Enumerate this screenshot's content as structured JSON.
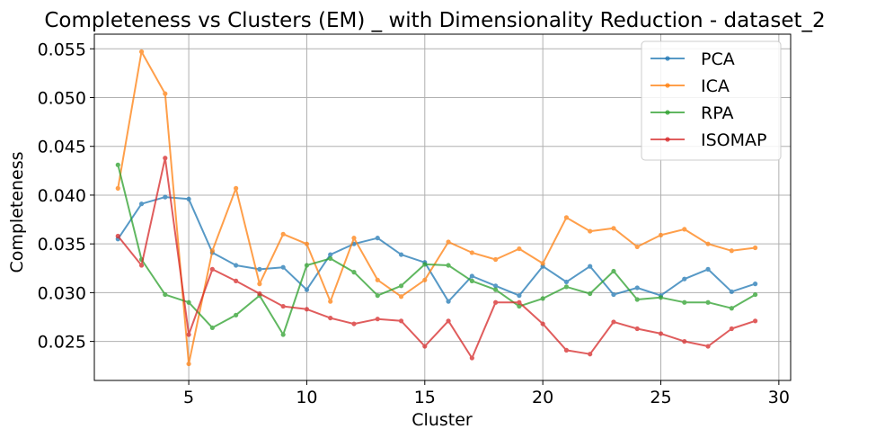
{
  "chart_data": {
    "type": "line",
    "title": "Completeness vs Clusters (EM) _ with Dimensionality Reduction - dataset_2",
    "xlabel": "Cluster",
    "ylabel": "Completeness",
    "xlim": [
      1,
      30.5
    ],
    "ylim": [
      0.021,
      0.0565
    ],
    "xticks": [
      5,
      10,
      15,
      20,
      25,
      30
    ],
    "yticks": [
      0.025,
      0.03,
      0.035,
      0.04,
      0.045,
      0.05,
      0.055
    ],
    "xtick_labels": [
      "5",
      "10",
      "15",
      "20",
      "25",
      "30"
    ],
    "ytick_labels": [
      "0.025",
      "0.030",
      "0.035",
      "0.040",
      "0.045",
      "0.050",
      "0.055"
    ],
    "grid": true,
    "legend_position": "top-right",
    "x": [
      2,
      3,
      4,
      5,
      6,
      7,
      8,
      9,
      10,
      11,
      12,
      13,
      14,
      15,
      16,
      17,
      18,
      19,
      20,
      21,
      22,
      23,
      24,
      25,
      26,
      27,
      28,
      29
    ],
    "series": [
      {
        "name": "PCA",
        "color": "#1f77b4",
        "values": [
          0.0355,
          0.0391,
          0.0398,
          0.0396,
          0.0341,
          0.0328,
          0.0324,
          0.0326,
          0.0303,
          0.0339,
          0.035,
          0.0356,
          0.0339,
          0.0331,
          0.0291,
          0.0317,
          0.0307,
          0.0297,
          0.0327,
          0.0311,
          0.0327,
          0.0298,
          0.0305,
          0.0297,
          0.0314,
          0.0324,
          0.0301,
          0.0309
        ]
      },
      {
        "name": "ICA",
        "color": "#ff7f0e",
        "values": [
          0.0407,
          0.0547,
          0.0504,
          0.0227,
          0.0343,
          0.0407,
          0.0309,
          0.036,
          0.035,
          0.0291,
          0.0356,
          0.0313,
          0.0296,
          0.0313,
          0.0352,
          0.0341,
          0.0334,
          0.0345,
          0.033,
          0.0377,
          0.0363,
          0.0366,
          0.0347,
          0.0359,
          0.0365,
          0.035,
          0.0343,
          0.0346
        ]
      },
      {
        "name": "RPA",
        "color": "#2ca02c",
        "values": [
          0.0431,
          0.0334,
          0.0298,
          0.029,
          0.0264,
          0.0277,
          0.0297,
          0.0257,
          0.0328,
          0.0335,
          0.0321,
          0.0297,
          0.0307,
          0.0329,
          0.0328,
          0.0312,
          0.0303,
          0.0286,
          0.0294,
          0.0306,
          0.0299,
          0.0322,
          0.0293,
          0.0295,
          0.029,
          0.029,
          0.0284,
          0.0298
        ]
      },
      {
        "name": "ISOMAP",
        "color": "#d62728",
        "values": [
          0.0358,
          0.0328,
          0.0438,
          0.0257,
          0.0324,
          0.0312,
          0.0299,
          0.0286,
          0.0283,
          0.0274,
          0.0268,
          0.0273,
          0.0271,
          0.0245,
          0.0271,
          0.0233,
          0.029,
          0.029,
          0.0268,
          0.0241,
          0.0237,
          0.027,
          0.0263,
          0.0258,
          0.025,
          0.0245,
          0.0263,
          0.0271
        ]
      }
    ]
  }
}
